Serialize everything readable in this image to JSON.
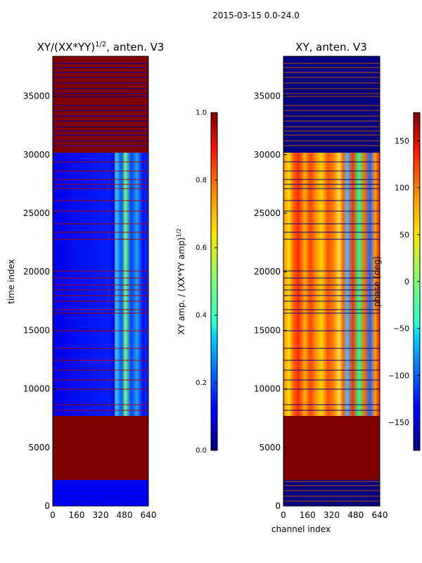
{
  "figure": {
    "suptitle": "2015-03-15 0.0-24.0"
  },
  "colors": {
    "axis": "#000000",
    "background": "#ffffff",
    "saturated": "#7f0000",
    "line_dark": "#000080",
    "line_red": "#b00000"
  },
  "chart_data": [
    {
      "type": "heatmap",
      "title_main": "XY/(XX*YY)",
      "title_sup": "1/2",
      "title_tail": ", anten. V3",
      "xlabel": "",
      "ylabel": "time index",
      "xlim": [
        0,
        640
      ],
      "ylim": [
        0,
        38400
      ],
      "xticks": [
        0,
        160,
        320,
        480,
        640
      ],
      "yticks": [
        0,
        5000,
        10000,
        15000,
        20000,
        25000,
        30000,
        35000
      ],
      "colorbar": {
        "label_main": "XY amp. / (XX*YY amp)",
        "label_sup": "1/2",
        "range": [
          0.0,
          1.0
        ],
        "ticks": [
          "0.0",
          "0.2",
          "0.4",
          "0.6",
          "0.8",
          "1.0"
        ]
      },
      "segments": [
        {
          "from": 0,
          "to": 2300,
          "state": "mixed"
        },
        {
          "from": 2300,
          "to": 7900,
          "state": "saturated"
        },
        {
          "from": 7900,
          "to": 30200,
          "state": "data"
        },
        {
          "from": 30200,
          "to": 38400,
          "state": "saturated"
        }
      ]
    },
    {
      "type": "heatmap",
      "title": "XY, anten. V3",
      "xlabel": "channel index",
      "ylabel": "",
      "xlim": [
        0,
        640
      ],
      "ylim": [
        0,
        38400
      ],
      "xticks": [
        0,
        160,
        320,
        480,
        640
      ],
      "yticks": [
        0,
        5000,
        10000,
        15000,
        20000,
        25000,
        30000,
        35000
      ],
      "colorbar": {
        "label": "phase (deg)",
        "range": [
          -180,
          180
        ],
        "ticks": [
          "150",
          "100",
          "50",
          "0",
          "−50",
          "−100",
          "−150"
        ]
      },
      "segments": [
        {
          "from": 0,
          "to": 2300,
          "state": "mixed"
        },
        {
          "from": 2300,
          "to": 7900,
          "state": "saturated"
        },
        {
          "from": 7900,
          "to": 30200,
          "state": "data"
        },
        {
          "from": 30200,
          "to": 38400,
          "state": "dark"
        }
      ]
    }
  ]
}
